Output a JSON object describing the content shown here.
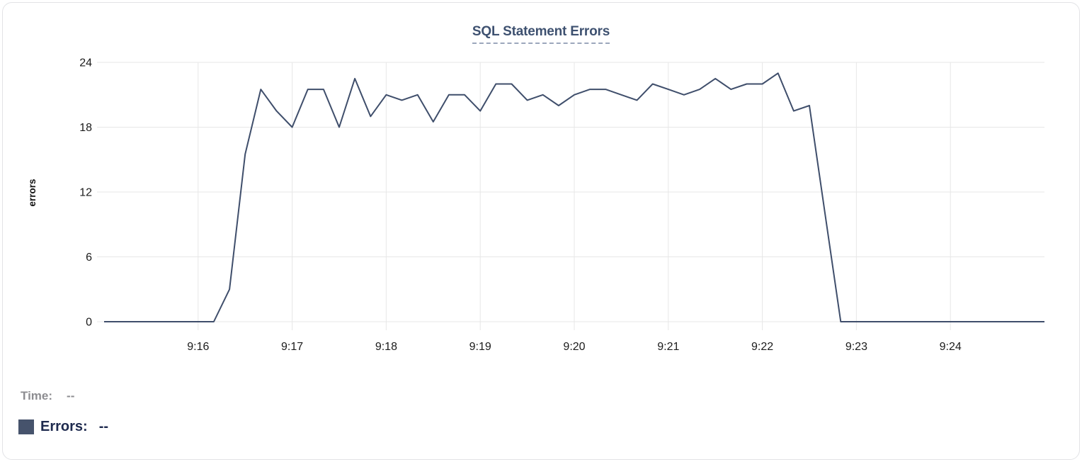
{
  "chart_data": {
    "type": "line",
    "title": "SQL Statement Errors",
    "xlabel": "",
    "ylabel": "errors",
    "x_start": "9:15:00",
    "x_end": "9:25:00",
    "x_step_seconds": 10,
    "x_ticks": [
      "9:16",
      "9:17",
      "9:18",
      "9:19",
      "9:20",
      "9:21",
      "9:22",
      "9:23",
      "9:24"
    ],
    "y_ticks": [
      0,
      6,
      12,
      18,
      24
    ],
    "ylim": [
      0,
      24
    ],
    "grid": true,
    "legend_position": "bottom-left",
    "series": [
      {
        "name": "Errors",
        "color": "#3F4E6B",
        "values": [
          0,
          0,
          0,
          0,
          0,
          0,
          0,
          0,
          3,
          15.5,
          21.5,
          19.5,
          18,
          21.5,
          21.5,
          18,
          22.5,
          19,
          21,
          20.5,
          21,
          18.5,
          21,
          21,
          19.5,
          22,
          22,
          20.5,
          21,
          20,
          21,
          21.5,
          21.5,
          21,
          20.5,
          22,
          21.5,
          21,
          21.5,
          22.5,
          21.5,
          22,
          22,
          23,
          19.5,
          20,
          10,
          0,
          0,
          0,
          0,
          0,
          0,
          0,
          0,
          0,
          0,
          0,
          0,
          0,
          0
        ]
      }
    ]
  },
  "readout": {
    "time_label": "Time:",
    "time_value": "--",
    "errors_label": "Errors:",
    "errors_value": "--"
  },
  "colors": {
    "title": "#3E5170",
    "title_underline": "#9CA7BC",
    "series_line": "#3F4E6B",
    "legend_swatch": "#46536C",
    "grid": "#E7E7E7",
    "tick_label": "#1B1B1B",
    "axis_title": "#111111",
    "time_label_gray": "#8D8D91",
    "errors_label_navy": "#1E2A4E"
  }
}
